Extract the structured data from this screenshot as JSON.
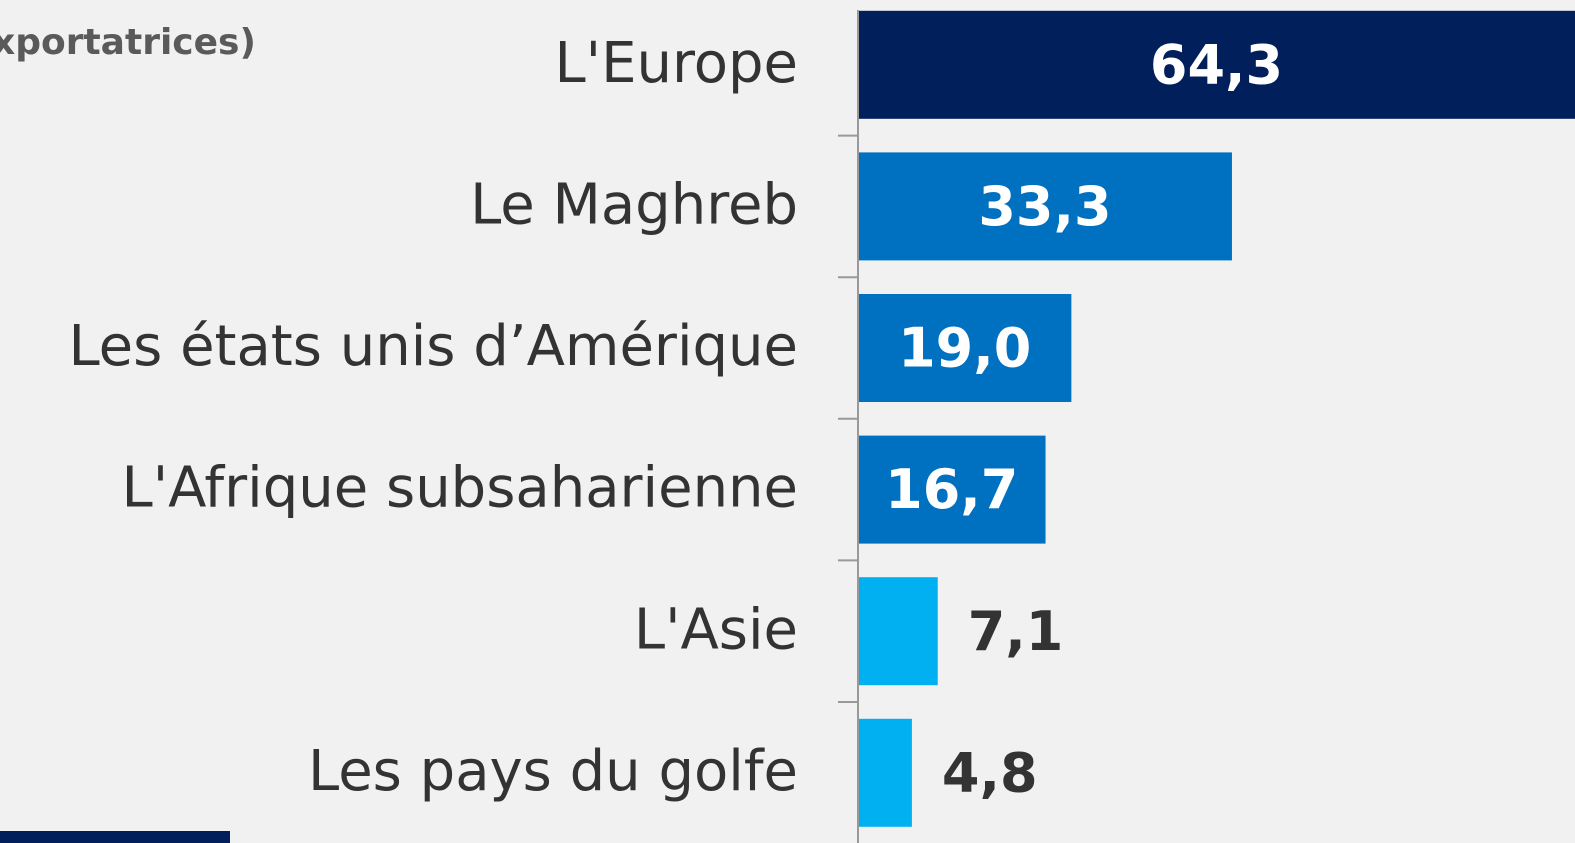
{
  "chart_data": {
    "type": "barh",
    "title": "xportatrices)",
    "categories": [
      "L'Europe",
      "Le Maghreb",
      "Les états unis d’Amérique",
      "L'Afrique subsaharienne",
      "L'Asie",
      "Les pays du golfe"
    ],
    "values": [
      64.3,
      33.3,
      19.0,
      16.7,
      7.1,
      4.8
    ],
    "value_labels": [
      "64,3",
      "33,3",
      "19,0",
      "16,7",
      "7,1",
      "4,8"
    ],
    "colors": [
      "#001f5b",
      "#0070c0",
      "#0070c0",
      "#0070c0",
      "#00b0f0",
      "#00b0f0"
    ]
  }
}
